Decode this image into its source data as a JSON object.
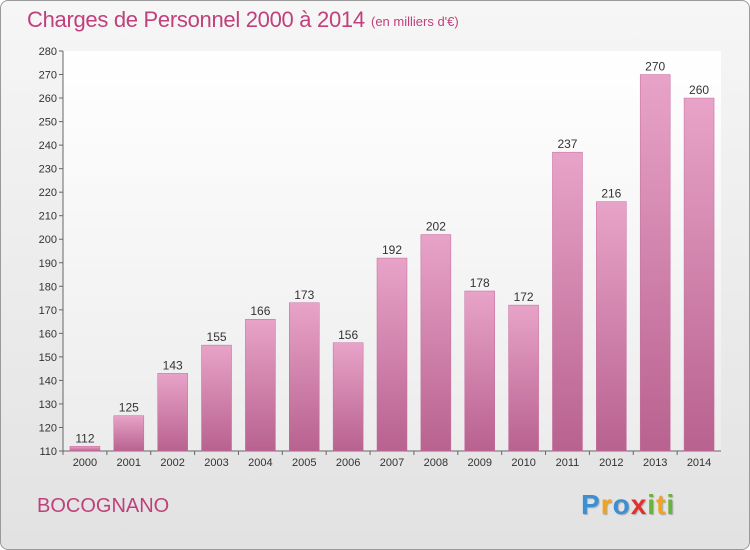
{
  "header": {
    "title": "Charges de Personnel 2000 à 2014",
    "unit": "(en milliers d'€)"
  },
  "footer": {
    "commune": "BOCOGNANO",
    "brand": [
      "P",
      "r",
      "o",
      "x",
      "i",
      "t",
      "i"
    ],
    "brand_colors": [
      "#3a8fd6",
      "#f2a31b",
      "#3a8fd6",
      "#e2312d",
      "#6ab23a",
      "#f2a31b",
      "#6ab23a"
    ]
  },
  "chart_data": {
    "type": "bar",
    "title": "Charges de Personnel 2000 à 2014",
    "subtitle": "(en milliers d'€)",
    "xlabel": "",
    "ylabel": "",
    "categories": [
      "2000",
      "2001",
      "2002",
      "2003",
      "2004",
      "2005",
      "2006",
      "2007",
      "2008",
      "2009",
      "2010",
      "2011",
      "2012",
      "2013",
      "2014"
    ],
    "values": [
      112,
      125,
      143,
      155,
      166,
      173,
      156,
      192,
      202,
      178,
      172,
      237,
      216,
      270,
      260
    ],
    "ylim": [
      110,
      280
    ],
    "yticks": [
      110,
      120,
      130,
      140,
      150,
      160,
      170,
      180,
      190,
      200,
      210,
      220,
      230,
      240,
      250,
      260,
      270,
      280
    ],
    "grid": false,
    "legend": "none",
    "bar_color": "#d97aae",
    "bar_color_dark": "#b8628f"
  }
}
